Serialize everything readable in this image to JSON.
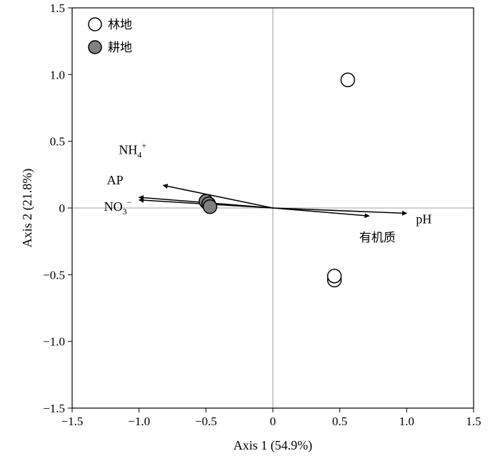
{
  "chart_data": {
    "type": "scatter",
    "xlabel": "Axis 1 (54.9%)",
    "ylabel": "Axis 2 (21.8%)",
    "xlim": [
      -1.5,
      1.5
    ],
    "ylim": [
      -1.5,
      1.5
    ],
    "xticks": [
      -1.5,
      -1.0,
      -0.5,
      0,
      0.5,
      1.0,
      1.5
    ],
    "yticks": [
      -1.5,
      -1.0,
      -0.5,
      0,
      0.5,
      1.0,
      1.5
    ],
    "xtick_labels": [
      "−1.5",
      "−1.0",
      "−0.5",
      "0",
      "0.5",
      "1.0",
      "1.5"
    ],
    "ytick_labels": [
      "−1.5",
      "−1.0",
      "−0.5",
      "0",
      "0.5",
      "1.0",
      "1.5"
    ],
    "reference_lines": {
      "x": 0,
      "y": 0
    },
    "legend_position": "top-left",
    "series": [
      {
        "name": "林地",
        "marker": "open-circle",
        "color": "#ffffff",
        "edge": "#000000",
        "points": [
          {
            "x": 0.56,
            "y": 0.96
          },
          {
            "x": 0.46,
            "y": -0.54
          },
          {
            "x": 0.46,
            "y": -0.51
          }
        ]
      },
      {
        "name": "耕地",
        "marker": "filled-circle",
        "color": "#808080",
        "edge": "#000000",
        "points": [
          {
            "x": -0.5,
            "y": 0.05
          },
          {
            "x": -0.48,
            "y": 0.03
          },
          {
            "x": -0.47,
            "y": 0.01
          }
        ]
      }
    ],
    "vectors": [
      {
        "name": "NH4+",
        "label_main": "NH",
        "label_sub": "4",
        "label_sup": "+",
        "x": -0.82,
        "y": 0.17
      },
      {
        "name": "AP",
        "label_main": "AP",
        "x": -1.0,
        "y": 0.08
      },
      {
        "name": "NO3-",
        "label_main": "NO",
        "label_sub": "3",
        "label_sup": "−",
        "x": -1.0,
        "y": 0.06
      },
      {
        "name": "pH",
        "label_main": "pH",
        "x": 1.0,
        "y": -0.04
      },
      {
        "name": "有机质",
        "label_main": "有机质",
        "x": 0.72,
        "y": -0.06
      }
    ]
  },
  "style": {
    "axis_color": "#000000",
    "refline_color": "#808080",
    "filled_color": "#808080"
  }
}
